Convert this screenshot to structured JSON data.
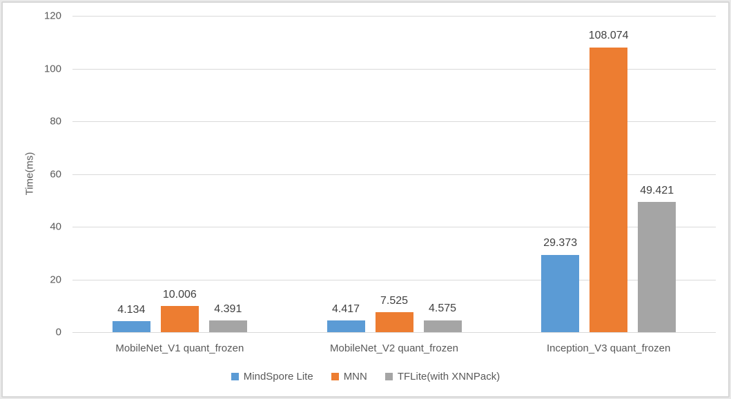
{
  "chart_data": {
    "type": "bar",
    "title": "",
    "xlabel": "",
    "ylabel": "Time(ms)",
    "ylim": [
      0,
      120
    ],
    "yticks": [
      0,
      20,
      40,
      60,
      80,
      100,
      120
    ],
    "grid": true,
    "legend_position": "bottom",
    "data_labels": true,
    "data_label_decimals": 3,
    "categories": [
      "MobileNet_V1 quant_frozen",
      "MobileNet_V2 quant_frozen",
      "Inception_V3 quant_frozen"
    ],
    "series": [
      {
        "name": "MindSpore Lite",
        "color": "#5B9BD5",
        "values": [
          4.134,
          4.417,
          29.373
        ]
      },
      {
        "name": "MNN",
        "color": "#ED7D31",
        "values": [
          10.006,
          7.525,
          108.074
        ]
      },
      {
        "name": "TFLite(with XNNPack)",
        "color": "#A5A5A5",
        "values": [
          4.391,
          4.575,
          49.421
        ]
      }
    ]
  },
  "colors": {
    "gridline": "#d9d9d9",
    "axis_text": "#595959",
    "data_label_text": "#404040",
    "frame_border": "#d6d6d6",
    "background": "#ffffff"
  }
}
